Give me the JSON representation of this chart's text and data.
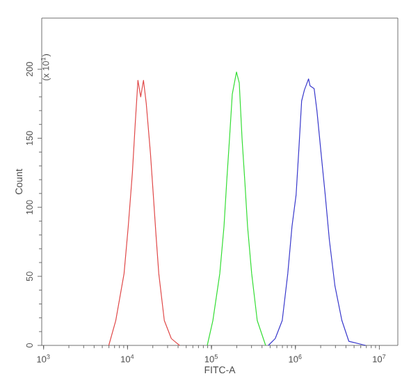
{
  "chart_data": {
    "type": "line",
    "xlabel": "FITC-A",
    "ylabel": "Count",
    "annotations": [
      "(x 10$^{1}$)"
    ],
    "log": "x",
    "xlim": [
      950,
      16600000
    ],
    "ylim": [
      0,
      237
    ],
    "xticks": [
      {
        "value": 1000,
        "label": "10$^{3}$"
      },
      {
        "value": 10000,
        "label": "10$^{4}$"
      },
      {
        "value": 100000,
        "label": "10$^{5}$"
      },
      {
        "value": 1000000,
        "label": "10$^{6}$"
      },
      {
        "value": 10000000,
        "label": "10$^{7}$"
      }
    ],
    "yticks": [
      0,
      50,
      100,
      150,
      200
    ],
    "grid": false,
    "marker": "none",
    "line_style": "solid",
    "series": [
      {
        "color": "#e04848",
        "x": [
          5980,
          7240,
          9090,
          10190,
          11420,
          12330,
          13300,
          14350,
          15490,
          16720,
          18750,
          20220,
          21830,
          23560,
          27420,
          33190,
          41690
        ],
        "values": [
          0,
          18,
          52,
          86,
          125,
          160,
          192,
          180,
          192,
          175,
          139,
          110,
          80,
          52,
          18,
          5,
          0
        ]
      },
      {
        "color": "#33dd33",
        "x": [
          89100,
          103900,
          125600,
          140900,
          152000,
          164100,
          177000,
          198600,
          214300,
          231200,
          249500,
          269200,
          301300,
          350800,
          441600
        ],
        "values": [
          0,
          18,
          52,
          86,
          119,
          150,
          182,
          198,
          190,
          150,
          119,
          86,
          52,
          18,
          0
        ]
      },
      {
        "color": "#3838cc",
        "x": [
          476400,
          575400,
          696600,
          811100,
          909900,
          1019000,
          1099000,
          1186000,
          1280000,
          1435000,
          1493000,
          1671000,
          1804000,
          2023000,
          2265000,
          2541000,
          2958000,
          3579000,
          4328000,
          6839000
        ],
        "values": [
          0,
          5,
          18,
          52,
          86,
          109,
          142,
          177,
          185,
          193,
          188,
          186,
          170,
          139,
          109,
          76,
          43,
          18,
          3,
          0
        ]
      }
    ]
  }
}
